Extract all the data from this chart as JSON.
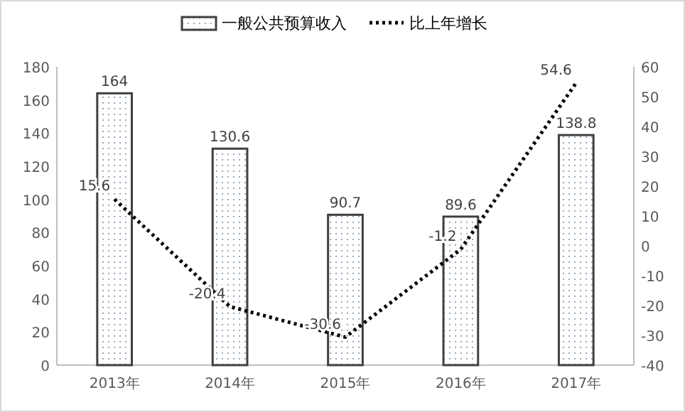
{
  "chart_data": {
    "type": "bar",
    "categories": [
      "2013年",
      "2014年",
      "2015年",
      "2016年",
      "2017年"
    ],
    "series": [
      {
        "name": "一般公共预算收入",
        "color": "#404040",
        "values": [
          164,
          130.6,
          90.7,
          89.6,
          138.8
        ]
      },
      {
        "name": "比上年增长",
        "type": "line",
        "axis": "y2",
        "color": "#000000",
        "line_style": "dotted",
        "marker": "none",
        "values": [
          15.6,
          -20.4,
          -30.6,
          -1.2,
          54.6
        ]
      }
    ],
    "ylim": [
      0,
      180
    ],
    "yticks": [
      0,
      20,
      40,
      60,
      80,
      100,
      120,
      140,
      160,
      180
    ],
    "y2lim": [
      -40,
      60
    ],
    "y2ticks": [
      -40,
      -30,
      -20,
      -10,
      0,
      10,
      20,
      30,
      40,
      50,
      60
    ],
    "data_labels": true,
    "legend": "top",
    "grid": false
  }
}
